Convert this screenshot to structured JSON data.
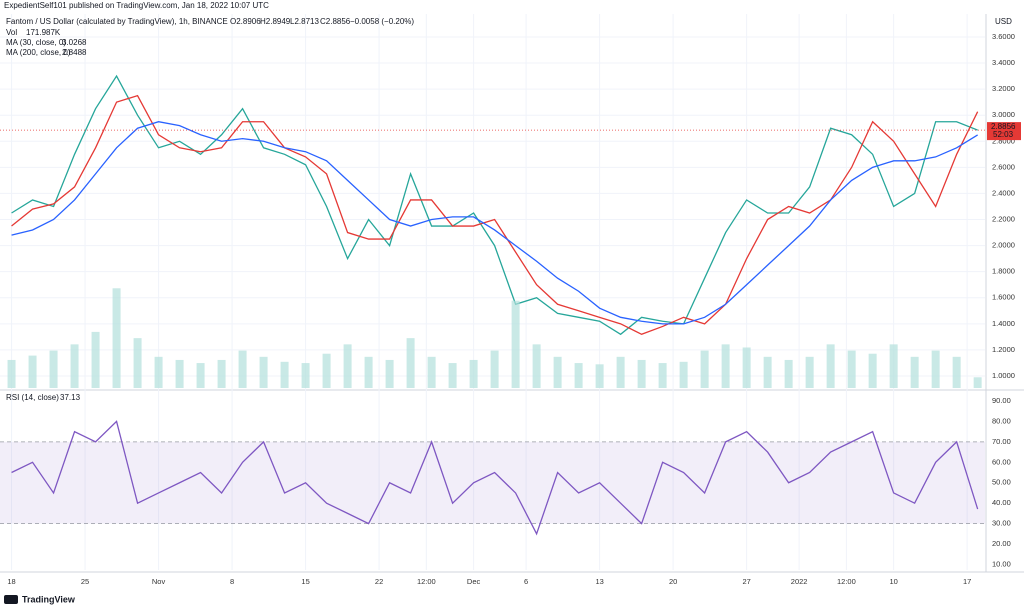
{
  "header": {
    "publisher": "ExpedientSelf101 published on TradingView.com, Jan 18, 2022 10:07 UTC",
    "currency": "USD",
    "brand": "TradingView"
  },
  "chart_data": [
    {
      "type": "line",
      "title": "Fantom / US Dollar (calculated by TradingView), 1h, BINANCE",
      "ohlc": [
        "O2.8906",
        "H2.8949",
        "L2.8713",
        "C2.8856",
        "−0.0058 (−0.20%)"
      ],
      "indicators": [
        {
          "label": "Vol",
          "value": "171.987K"
        },
        {
          "label": "MA (30, close, 0)",
          "value": "3.0268"
        },
        {
          "label": "MA (200, close, 0)",
          "value": "2.8488"
        }
      ],
      "last_price": {
        "label": "2.8856",
        "countdown": "52:03"
      },
      "x": [
        0,
        2,
        4,
        6,
        8,
        10,
        12,
        14,
        16,
        18,
        20,
        22,
        24,
        26,
        28,
        30,
        32,
        34,
        36,
        38,
        40,
        42,
        44,
        46,
        48,
        50,
        52,
        54,
        56,
        58,
        60,
        62,
        64,
        66,
        68,
        70,
        72,
        74,
        76,
        78,
        80,
        82,
        84,
        86,
        88,
        90,
        92
      ],
      "series": [
        {
          "color": "#26a69a",
          "values": [
            2.25,
            2.35,
            2.3,
            2.7,
            3.05,
            3.3,
            3.0,
            2.75,
            2.8,
            2.7,
            2.85,
            3.05,
            2.75,
            2.7,
            2.62,
            2.3,
            1.9,
            2.2,
            2.0,
            2.55,
            2.15,
            2.15,
            2.25,
            2.0,
            1.55,
            1.6,
            1.48,
            1.45,
            1.42,
            1.32,
            1.45,
            1.42,
            1.4,
            1.75,
            2.1,
            2.35,
            2.25,
            2.25,
            2.45,
            2.9,
            2.85,
            2.7,
            2.3,
            2.4,
            2.95,
            2.95,
            2.8856
          ]
        },
        {
          "name": "MA (30, close, 0)",
          "color": "#e53935",
          "values": [
            2.15,
            2.28,
            2.32,
            2.45,
            2.75,
            3.1,
            3.15,
            2.85,
            2.75,
            2.72,
            2.75,
            2.95,
            2.95,
            2.75,
            2.68,
            2.55,
            2.1,
            2.05,
            2.05,
            2.35,
            2.35,
            2.15,
            2.15,
            2.2,
            1.95,
            1.7,
            1.55,
            1.5,
            1.45,
            1.4,
            1.32,
            1.38,
            1.45,
            1.4,
            1.55,
            1.9,
            2.2,
            2.3,
            2.25,
            2.35,
            2.6,
            2.95,
            2.8,
            2.55,
            2.3,
            2.7,
            3.0268
          ]
        },
        {
          "name": "MA (200, close, 0)",
          "color": "#2962ff",
          "values": [
            2.08,
            2.12,
            2.2,
            2.35,
            2.55,
            2.75,
            2.9,
            2.95,
            2.92,
            2.85,
            2.8,
            2.82,
            2.8,
            2.75,
            2.72,
            2.65,
            2.5,
            2.35,
            2.2,
            2.15,
            2.2,
            2.22,
            2.22,
            2.12,
            2.0,
            1.88,
            1.75,
            1.65,
            1.52,
            1.45,
            1.42,
            1.4,
            1.4,
            1.45,
            1.55,
            1.7,
            1.85,
            2.0,
            2.15,
            2.35,
            2.5,
            2.6,
            2.65,
            2.65,
            2.68,
            2.75,
            2.8488
          ]
        },
        {
          "axis": "y2",
          "color": "#b2dfdb",
          "values": [
            450,
            520,
            600,
            700,
            900,
            1600,
            800,
            500,
            450,
            400,
            450,
            600,
            500,
            420,
            400,
            550,
            700,
            500,
            450,
            800,
            500,
            400,
            450,
            600,
            1400,
            700,
            500,
            400,
            380,
            500,
            450,
            400,
            420,
            600,
            700,
            650,
            500,
            450,
            500,
            700,
            600,
            550,
            700,
            500,
            600,
            500,
            172
          ]
        }
      ],
      "xlim": [
        -1.1,
        92.7
      ],
      "ylim": [
        0.908,
        3.776
      ],
      "y2lim": [
        0,
        6000
      ],
      "yticks": [
        {
          "value": 1,
          "label": "1.0000"
        },
        {
          "value": 1.2,
          "label": "1.2000"
        },
        {
          "value": 1.4,
          "label": "1.4000"
        },
        {
          "value": 1.6,
          "label": "1.6000"
        },
        {
          "value": 1.8,
          "label": "1.8000"
        },
        {
          "value": 2,
          "label": "2.0000"
        },
        {
          "value": 2.2,
          "label": "2.2000"
        },
        {
          "value": 2.4,
          "label": "2.4000"
        },
        {
          "value": 2.6,
          "label": "2.6000"
        },
        {
          "value": 2.8,
          "label": "2.8000"
        },
        {
          "value": 3,
          "label": "3.0000"
        },
        {
          "value": 3.2,
          "label": "3.2000"
        },
        {
          "value": 3.4,
          "label": "3.4000"
        },
        {
          "value": 3.6,
          "label": "3.6000"
        }
      ],
      "xticks": [
        {
          "value": 0,
          "label": "18"
        },
        {
          "value": 7,
          "label": "25"
        },
        {
          "value": 14,
          "label": "Nov"
        },
        {
          "value": 21,
          "label": "8"
        },
        {
          "value": 28,
          "label": "15"
        },
        {
          "value": 35,
          "label": "22"
        },
        {
          "value": 39.5,
          "label": "12:00"
        },
        {
          "value": 44,
          "label": "Dec"
        },
        {
          "value": 49,
          "label": "6"
        },
        {
          "value": 56,
          "label": "13"
        },
        {
          "value": 63,
          "label": "20"
        },
        {
          "value": 70,
          "label": "27"
        },
        {
          "value": 75,
          "label": "2022"
        },
        {
          "value": 79.5,
          "label": "12:00"
        },
        {
          "value": 84,
          "label": "10"
        },
        {
          "value": 91,
          "label": "17"
        }
      ],
      "grid": true
    },
    {
      "type": "line",
      "title": "RSI (14, close)",
      "value_text": "37.13",
      "x": [
        0,
        2,
        4,
        6,
        8,
        10,
        12,
        14,
        16,
        18,
        20,
        22,
        24,
        26,
        28,
        30,
        32,
        34,
        36,
        38,
        40,
        42,
        44,
        46,
        48,
        50,
        52,
        54,
        56,
        58,
        60,
        62,
        64,
        66,
        68,
        70,
        72,
        74,
        76,
        78,
        80,
        82,
        84,
        86,
        88,
        90,
        92
      ],
      "series": [
        {
          "color": "#7e57c2",
          "values": [
            55,
            60,
            45,
            75,
            70,
            80,
            40,
            45,
            50,
            55,
            45,
            60,
            70,
            45,
            50,
            40,
            35,
            30,
            50,
            45,
            70,
            40,
            50,
            55,
            45,
            25,
            55,
            45,
            50,
            40,
            30,
            60,
            55,
            45,
            70,
            75,
            65,
            50,
            55,
            65,
            70,
            75,
            45,
            40,
            60,
            70,
            37.13
          ]
        }
      ],
      "band": [
        30,
        70
      ],
      "xlim": [
        -1.1,
        92.7
      ],
      "ylim": [
        7.3,
        94.4
      ],
      "yticks": [
        {
          "value": 10,
          "label": "10.00"
        },
        {
          "value": 20,
          "label": "20.00"
        },
        {
          "value": 30,
          "label": "30.00"
        },
        {
          "value": 40,
          "label": "40.00"
        },
        {
          "value": 50,
          "label": "50.00"
        },
        {
          "value": 60,
          "label": "60.00"
        },
        {
          "value": 70,
          "label": "70.00"
        },
        {
          "value": 80,
          "label": "80.00"
        },
        {
          "value": 90,
          "label": "90.00"
        }
      ]
    }
  ]
}
